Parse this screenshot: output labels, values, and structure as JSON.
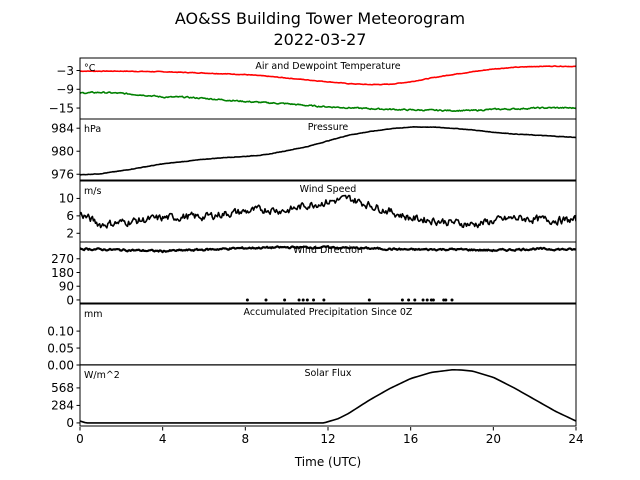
{
  "figure": {
    "title_line1": "AO&SS Building Tower Meteorogram",
    "title_line2": "2022-03-27",
    "xlabel": "Time (UTC)"
  },
  "chart_data": {
    "type": "line",
    "title": "AO&SS Building Tower Meteorogram",
    "subtitle": "2022-03-27",
    "xlabel": "Time (UTC)",
    "xlim": [
      0,
      24
    ],
    "x_ticks": [
      0,
      4,
      8,
      12,
      16,
      20,
      24
    ],
    "panels": [
      {
        "id": "temperature",
        "label": "Air and Dewpoint Temperature",
        "unit": "°C",
        "ylim": [
          -18.5,
          1
        ],
        "y_ticks": [
          -3,
          -9,
          -15
        ],
        "y_tick_labels": [
          "−3",
          "−9",
          "−15"
        ],
        "series": [
          {
            "color": "#ff0000",
            "noise": 0.15,
            "x": [
              0,
              2,
              4,
              6,
              8,
              9,
              10,
              11,
              12,
              13,
              14,
              15,
              16,
              17,
              18,
              19,
              20,
              21,
              22,
              23,
              24
            ],
            "values": [
              -3.2,
              -3.2,
              -3.4,
              -3.8,
              -4.3,
              -4.8,
              -5.4,
              -6.0,
              -6.6,
              -7.2,
              -7.5,
              -7.4,
              -6.6,
              -5.4,
              -4.3,
              -3.4,
              -2.5,
              -2.0,
              -1.7,
              -1.6,
              -1.7
            ]
          },
          {
            "color": "#008000",
            "noise": 0.35,
            "x": [
              0,
              1,
              2,
              3,
              3.5,
              4,
              5,
              6,
              8,
              9,
              10,
              11,
              12,
              13,
              14,
              15,
              16,
              17,
              18,
              19,
              20,
              21,
              22,
              23,
              24
            ],
            "values": [
              -10.2,
              -10.0,
              -10.3,
              -10.8,
              -11.1,
              -11.5,
              -11.5,
              -11.9,
              -12.9,
              -13.3,
              -13.6,
              -14.2,
              -14.6,
              -14.9,
              -15.2,
              -15.4,
              -15.6,
              -15.7,
              -15.8,
              -15.8,
              -15.4,
              -15.3,
              -15.0,
              -14.9,
              -15.0
            ]
          }
        ]
      },
      {
        "id": "pressure",
        "label": "Pressure",
        "unit": "hPa",
        "ylim": [
          975,
          985.6
        ],
        "y_ticks": [
          984,
          980,
          976
        ],
        "series": [
          {
            "color": "#000000",
            "noise": 0.06,
            "x": [
              0,
              1,
              2,
              3,
              4,
              5,
              6,
              7,
              8,
              9,
              10,
              11,
              12,
              13,
              14,
              15,
              16,
              17,
              18,
              19,
              20,
              21,
              22,
              23,
              24
            ],
            "values": [
              975.9,
              976.1,
              976.6,
              977.2,
              977.8,
              978.2,
              978.6,
              978.9,
              979.1,
              979.4,
              980.1,
              980.8,
              981.8,
              982.8,
              983.4,
              983.9,
              984.2,
              984.2,
              984.0,
              983.7,
              983.3,
              983.0,
              982.8,
              982.6,
              982.4
            ]
          }
        ]
      },
      {
        "id": "wind_speed",
        "label": "Wind Speed",
        "unit": "m/s",
        "ylim": [
          0,
          14
        ],
        "y_ticks": [
          10,
          6,
          2
        ],
        "series": [
          {
            "color": "#000000",
            "noise": 1.4,
            "x": [
              0,
              1,
              2,
              3,
              4,
              5,
              6,
              7,
              8,
              9,
              10,
              11,
              12,
              13,
              14,
              15,
              16,
              17,
              18,
              19,
              20,
              21,
              22,
              23,
              24
            ],
            "values": [
              6.5,
              4.0,
              4.5,
              5.0,
              5.5,
              5.8,
              5.8,
              6.5,
              7.0,
              7.5,
              7.2,
              8.5,
              9.2,
              10.0,
              8.5,
              7.0,
              5.5,
              5.0,
              4.5,
              4.0,
              4.8,
              5.5,
              5.2,
              5.0,
              5.0
            ]
          }
        ]
      },
      {
        "id": "wind_direction",
        "label": "Wind Direction",
        "unit": "",
        "ylim": [
          -20,
          380
        ],
        "y_ticks": [
          270,
          180,
          90,
          0
        ],
        "series": [
          {
            "color": "#000000",
            "noise": 10,
            "x": [
              0,
              2,
              4,
              6,
              8,
              10,
              12,
              14,
              16,
              18,
              20,
              22,
              24
            ],
            "values": [
              335,
              328,
              320,
              330,
              340,
              345,
              345,
              338,
              330,
              332,
              325,
              335,
              330
            ]
          }
        ],
        "points": {
          "color": "#000000",
          "x": [
            8.1,
            9.0,
            9.9,
            10.6,
            10.8,
            11.0,
            11.3,
            11.8,
            14.0,
            15.6,
            15.9,
            16.2,
            16.6,
            16.8,
            17.0,
            17.1,
            17.6,
            17.7,
            18.0
          ],
          "y": [
            0,
            0,
            0,
            0,
            0,
            0,
            0,
            0,
            0,
            0,
            0,
            0,
            0,
            0,
            0,
            0,
            0,
            0,
            0
          ]
        }
      },
      {
        "id": "precipitation",
        "label": "Accumulated Precipitation Since 0Z",
        "unit": "mm",
        "ylim": [
          0,
          0.18
        ],
        "y_ticks": [
          0.1,
          0.05,
          0.0
        ],
        "y_tick_labels": [
          "0.10",
          "0.05",
          "0.00"
        ],
        "series": [
          {
            "color": "#000000",
            "noise": 0,
            "x": [
              0,
              24
            ],
            "values": [
              0,
              0
            ]
          }
        ]
      },
      {
        "id": "solar",
        "label": "Solar Flux",
        "unit": "W/m^2",
        "ylim": [
          -50,
          940
        ],
        "y_ticks": [
          568,
          284,
          0
        ],
        "series": [
          {
            "color": "#000000",
            "noise": 0,
            "x": [
              0,
              0.3,
              1,
              2,
              4,
              6,
              8,
              10,
              11.8,
              12.5,
              13,
              14,
              15,
              16,
              17,
              18,
              18.4,
              19,
              20,
              21,
              22,
              23,
              24
            ],
            "values": [
              30,
              0,
              0,
              0,
              0,
              0,
              0,
              0,
              0,
              70,
              155,
              370,
              560,
              720,
              820,
              862,
              860,
              840,
              740,
              570,
              380,
              190,
              30
            ]
          }
        ]
      }
    ]
  }
}
